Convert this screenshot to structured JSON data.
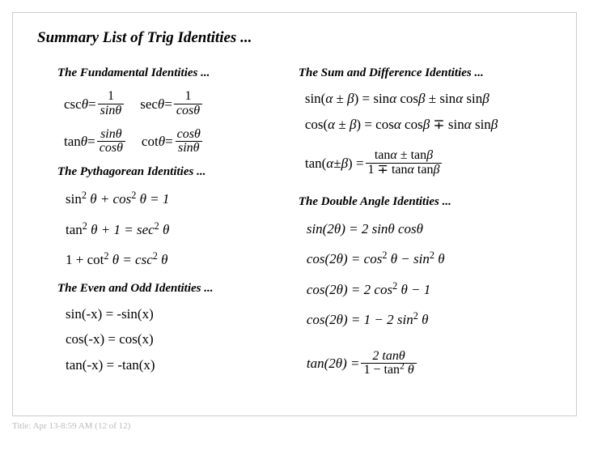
{
  "title": "Summary List of Trig Identities ...",
  "footer": "Title: Apr 13-8:59 AM (12 of 12)",
  "colors": {
    "border": "#cccccc",
    "text": "#000000",
    "footer": "#bbbbbb",
    "bg": "#ffffff"
  },
  "typography": {
    "mainTitlePt": 19,
    "sectionTitlePt": 15,
    "equationPt": 17,
    "footerPt": 11,
    "family": "Times New Roman"
  },
  "left": {
    "fundamental": {
      "title": "The Fundamental Identities ...",
      "row1a": {
        "lhs": "csc",
        "var": "θ",
        "eq": " = ",
        "num": "1",
        "den": "sinθ"
      },
      "row1b": {
        "lhs": "sec",
        "var": "θ",
        "eq": " = ",
        "num": "1",
        "den": "cosθ"
      },
      "row2a": {
        "lhs": "tan",
        "var": "θ",
        "eq": " = ",
        "num": "sinθ",
        "den": "cosθ"
      },
      "row2b": {
        "lhs": "cot",
        "var": "θ",
        "eq": " = ",
        "num": "cosθ",
        "den": "sinθ"
      }
    },
    "pythagorean": {
      "title": "The Pythagorean Identities ...",
      "eq1": {
        "a": "sin",
        "sup": "2",
        "b": " θ + cos",
        "c": " θ = 1"
      },
      "eq2": {
        "a": "tan",
        "sup": "2",
        "b": " θ + 1 = sec",
        "c": " θ"
      },
      "eq3": {
        "a": "1 + cot",
        "sup": "2",
        "b": " θ = csc",
        "c": " θ"
      }
    },
    "evenodd": {
      "title": "The Even and Odd Identities ...",
      "eq1": "sin(-x) = -sin(x)",
      "eq2": "cos(-x) = cos(x)",
      "eq3": "tan(-x) = -tan(x)"
    }
  },
  "right": {
    "sumdiff": {
      "title": "The Sum and Difference Identities ...",
      "eq1": {
        "lhs": "sin(",
        "a": "α",
        "pm": " ± ",
        "b": "β",
        "rhs1": ") = sin",
        "rhs2": " cos",
        "rhs3": " ± sin",
        "rhs4": " cos",
        "rhs5": " sin"
      },
      "eq2": {
        "lhs": "cos(",
        "a": "α",
        "pm": " ± ",
        "b": "β",
        "rhs1": ") = cos",
        "rhs2": " cos",
        "rhs3": " ∓ sin",
        "rhs4": " sin"
      },
      "eq3": {
        "lhs": "tan(",
        "a": "α",
        "pm": " ± ",
        "b": "β",
        "rparen": ") = ",
        "num1": "tan",
        "num2": " ± tan",
        "den1": "1 ∓ tan",
        "den2": " tan"
      }
    },
    "double": {
      "title": "The Double Angle Identities ...",
      "eq1": "sin(2θ) = 2 sinθ cosθ",
      "eq2": {
        "pre": "cos(2θ) = cos",
        "sup": "2",
        "mid": " θ − sin",
        "post": " θ"
      },
      "eq3": {
        "pre": "cos(2θ) = 2 cos",
        "sup": "2",
        "post": " θ − 1"
      },
      "eq4": {
        "pre": "cos(2θ) = 1 − 2 sin",
        "sup": "2",
        "post": " θ"
      },
      "eq5": {
        "lhs": "tan(2θ) = ",
        "num": "2 tanθ",
        "den1": "1 − tan",
        "densup": "2",
        "den2": " θ"
      }
    }
  }
}
